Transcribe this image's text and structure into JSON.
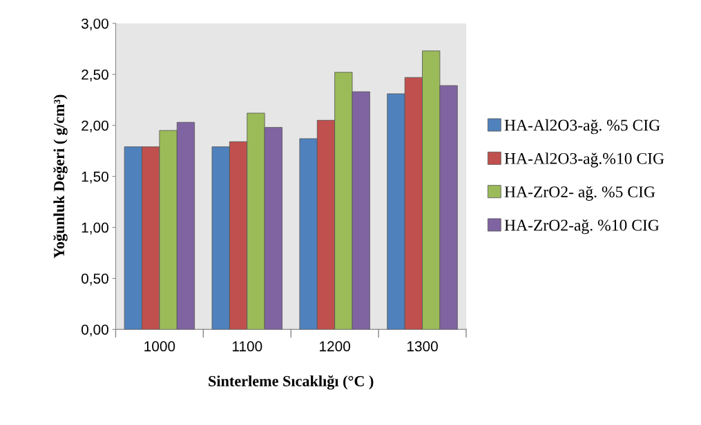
{
  "chart_data": {
    "type": "bar",
    "categories": [
      "1000",
      "1100",
      "1200",
      "1300"
    ],
    "xlabel": "Sinterleme Sıcaklığı (°C )",
    "ylabel": "Yoğunluk Değeri ( g/cm³)",
    "ylim": [
      0,
      3
    ],
    "yticks": [
      {
        "value": 0,
        "label": "0,00"
      },
      {
        "value": 0.5,
        "label": "0,50"
      },
      {
        "value": 1,
        "label": "1,00"
      },
      {
        "value": 1.5,
        "label": "1,50"
      },
      {
        "value": 2,
        "label": "2,00"
      },
      {
        "value": 2.5,
        "label": "2,50"
      },
      {
        "value": 3,
        "label": "3,00"
      }
    ],
    "grid": false,
    "legend": "right",
    "series": [
      {
        "name": "HA-Al2O3-ağ. %5 CIG",
        "color": "#4f81bd",
        "values": [
          1.79,
          1.79,
          1.87,
          2.31
        ]
      },
      {
        "name": "HA-Al2O3-ağ.%10 CIG",
        "color": "#c0504d",
        "values": [
          1.79,
          1.84,
          2.05,
          2.47
        ]
      },
      {
        "name": "HA-ZrO2- ağ. %5 CIG",
        "color": "#9bbb59",
        "values": [
          1.95,
          2.12,
          2.52,
          2.73
        ]
      },
      {
        "name": "HA-ZrO2-ağ. %10 CIG",
        "color": "#8064a2",
        "values": [
          2.03,
          1.98,
          2.33,
          2.39
        ]
      }
    ]
  }
}
